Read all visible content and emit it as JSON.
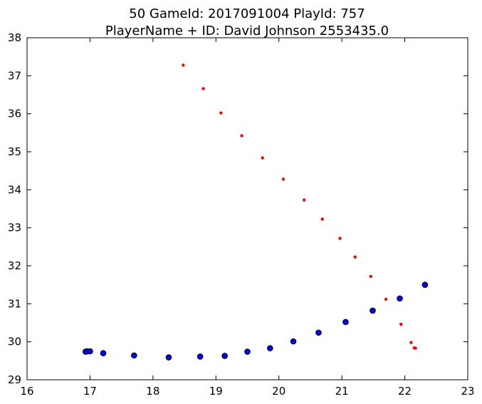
{
  "chart_data": {
    "type": "scatter",
    "title_line1": "50 GameId: 2017091004 PlayId: 757",
    "title_line2": "PlayerName + ID: David Johnson 2553435.0",
    "xlabel": "",
    "ylabel": "",
    "xlim": [
      16,
      23
    ],
    "ylim": [
      29,
      38
    ],
    "xticks": [
      "16",
      "17",
      "18",
      "19",
      "20",
      "21",
      "22",
      "23"
    ],
    "yticks": [
      "29",
      "30",
      "31",
      "32",
      "33",
      "34",
      "35",
      "36",
      "37",
      "38"
    ],
    "grid": false,
    "series": [
      {
        "color": "#ff0000",
        "marker": "small-dot",
        "x": [
          18.48,
          18.8,
          19.08,
          19.41,
          19.74,
          20.07,
          20.4,
          20.69,
          20.97,
          21.21,
          21.46,
          21.7,
          21.94,
          22.1,
          22.15,
          22.17
        ],
        "y": [
          37.28,
          36.66,
          36.02,
          35.42,
          34.84,
          34.28,
          33.73,
          33.23,
          32.72,
          32.23,
          31.72,
          31.12,
          30.46,
          29.98,
          29.84,
          29.83
        ]
      },
      {
        "color": "#0000ff",
        "marker": "large-dot",
        "x": [
          16.93,
          16.95,
          17.0,
          17.21,
          17.7,
          18.25,
          18.75,
          19.14,
          19.5,
          19.86,
          20.23,
          20.63,
          21.06,
          21.49,
          21.92,
          22.32
        ],
        "y": [
          29.74,
          29.75,
          29.75,
          29.7,
          29.64,
          29.59,
          29.61,
          29.63,
          29.74,
          29.83,
          30.01,
          30.24,
          30.52,
          30.82,
          31.14,
          31.5
        ]
      }
    ]
  }
}
